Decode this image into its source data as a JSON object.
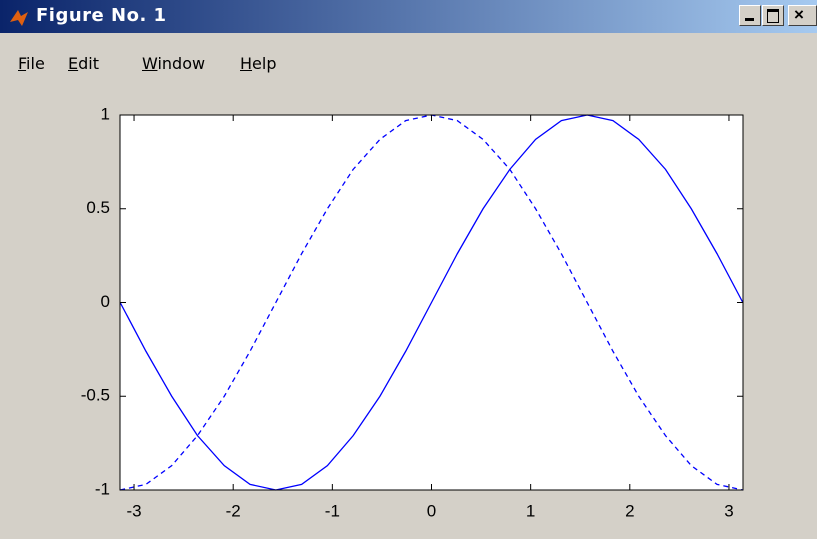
{
  "window": {
    "title": "Figure No. 1",
    "menu": [
      "File",
      "Edit",
      "Window",
      "Help"
    ]
  },
  "chart_data": {
    "type": "line",
    "x": [
      -3.14,
      -2.88,
      -2.62,
      -2.36,
      -2.09,
      -1.83,
      -1.57,
      -1.31,
      -1.05,
      -0.79,
      -0.52,
      -0.26,
      0,
      0.26,
      0.52,
      0.79,
      1.05,
      1.31,
      1.57,
      1.83,
      2.09,
      2.36,
      2.62,
      2.88,
      3.14
    ],
    "series": [
      {
        "color": "#0000ff",
        "line_style": "solid",
        "values": [
          0,
          -0.26,
          -0.5,
          -0.71,
          -0.87,
          -0.97,
          -1,
          -0.97,
          -0.87,
          -0.71,
          -0.5,
          -0.26,
          0,
          0.26,
          0.5,
          0.71,
          0.87,
          0.97,
          1,
          0.97,
          0.87,
          0.71,
          0.5,
          0.26,
          0
        ]
      },
      {
        "color": "#0000ff",
        "line_style": "dashed",
        "values": [
          -1,
          -0.97,
          -0.87,
          -0.71,
          -0.5,
          -0.26,
          0,
          0.26,
          0.5,
          0.71,
          0.87,
          0.97,
          1,
          0.97,
          0.87,
          0.71,
          0.5,
          0.26,
          0,
          -0.26,
          -0.5,
          -0.71,
          -0.87,
          -0.97,
          -1
        ]
      }
    ],
    "xlim": [
      -3.1416,
      3.1416
    ],
    "xticks": [
      -3,
      -2,
      -1,
      0,
      1,
      2,
      3
    ],
    "ylim": [
      -1,
      1
    ],
    "yticks": [
      -1,
      -0.5,
      0,
      0.5,
      1
    ],
    "grid": false
  }
}
